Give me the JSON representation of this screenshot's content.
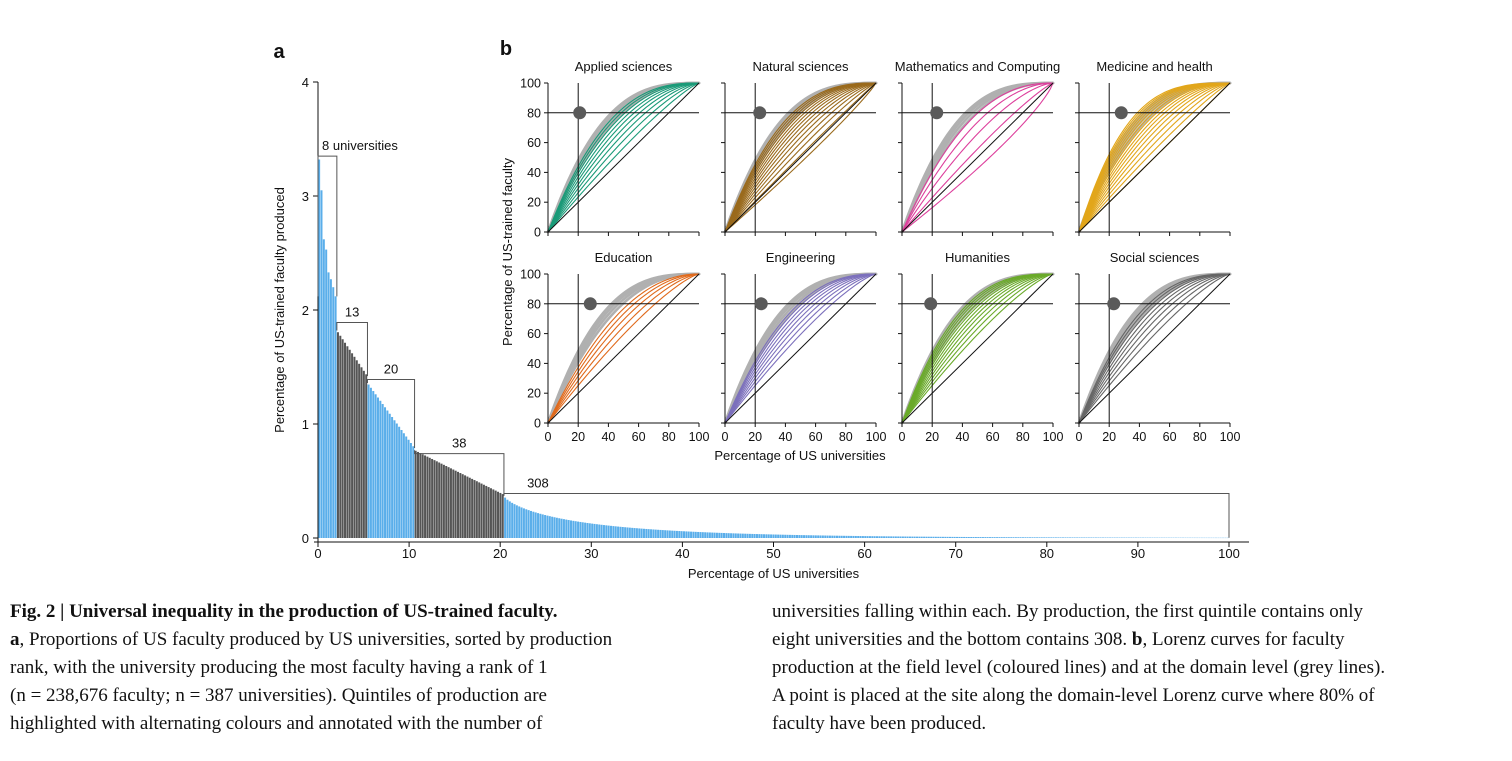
{
  "chart_data": [
    {
      "panel": "a",
      "type": "bar",
      "xlabel": "Percentage of US universities",
      "ylabel": "Percentage of US-trained faculty produced",
      "xlim": [
        0,
        100
      ],
      "ylim": [
        0,
        4
      ],
      "xticks": [
        "0",
        "10",
        "20",
        "30",
        "40",
        "50",
        "60",
        "70",
        "80",
        "90",
        "100"
      ],
      "yticks": [
        "0",
        "1",
        "2",
        "3",
        "4"
      ],
      "n_universities": 387,
      "colors": {
        "light": "#5aaeea",
        "dark": "#555555"
      },
      "leading_values": [
        3.32,
        3.05,
        2.62,
        2.53,
        2.33,
        2.27,
        2.2,
        2.12
      ],
      "quintiles": [
        {
          "label": "8 universities",
          "count": 8,
          "x_start": 0,
          "x_end": 2.07,
          "y_start": 2.12,
          "y_end": 2.12,
          "bracket_y": 3.35
        },
        {
          "label": "13",
          "count": 13,
          "x_start": 2.07,
          "x_end": 5.43,
          "y_start": 1.82,
          "y_end": 1.42,
          "bracket_y": 1.89
        },
        {
          "label": "20",
          "count": 20,
          "x_start": 5.43,
          "x_end": 10.6,
          "y_start": 1.36,
          "y_end": 0.79,
          "bracket_y": 1.39
        },
        {
          "label": "38",
          "count": 38,
          "x_start": 10.6,
          "x_end": 20.41,
          "y_start": 0.77,
          "y_end": 0.38,
          "bracket_y": 0.74
        },
        {
          "label": "308",
          "count": 308,
          "x_start": 20.41,
          "x_end": 100,
          "y_start": 0.37,
          "y_end": 0.002,
          "bracket_y": 0.39
        }
      ]
    },
    {
      "panel": "b",
      "type": "line",
      "xlabel": "Percentage of US universities",
      "ylabel": "Percentage of US-trained faculty",
      "xlim": [
        0,
        100
      ],
      "ylim": [
        0,
        100
      ],
      "ticks": [
        "0",
        "20",
        "40",
        "60",
        "80",
        "100"
      ],
      "domain_line_color": "#b0b0b0",
      "point_color": "#5a5a5a",
      "panels": [
        {
          "title": "Applied sciences",
          "color": "#1a9a78",
          "point_x": 21,
          "field_lines": 9,
          "curvature_range": [
            1.2,
            2.6
          ]
        },
        {
          "title": "Natural sciences",
          "color": "#9a6a1c",
          "point_x": 23,
          "field_lines": 14,
          "curvature_range": [
            0.9,
            2.7
          ]
        },
        {
          "title": "Mathematics and Computing",
          "color": "#dd3f9c",
          "point_x": 23,
          "field_lines": 5,
          "curvature_range": [
            0.8,
            2.3
          ]
        },
        {
          "title": "Medicine and health",
          "color": "#e2a61a",
          "point_x": 28,
          "field_lines": 16,
          "curvature_range": [
            1.0,
            3.3
          ]
        },
        {
          "title": "Education",
          "color": "#e06a1c",
          "point_x": 28,
          "field_lines": 5,
          "curvature_range": [
            1.3,
            2.1
          ]
        },
        {
          "title": "Engineering",
          "color": "#7c70bc",
          "point_x": 24,
          "field_lines": 8,
          "curvature_range": [
            1.3,
            2.4
          ]
        },
        {
          "title": "Humanities",
          "color": "#6aaa2a",
          "point_x": 19,
          "field_lines": 11,
          "curvature_range": [
            1.3,
            2.8
          ]
        },
        {
          "title": "Social sciences",
          "color": "#666666",
          "point_x": 23,
          "field_lines": 8,
          "curvature_range": [
            1.3,
            2.6
          ]
        }
      ]
    }
  ],
  "panel_labels": {
    "a": "a",
    "b": "b"
  },
  "caption": {
    "title": "Fig. 2 | Universal inequality in the production of US-trained faculty.",
    "left_lines": [
      {
        "bold": "a",
        "text": ", Proportions of US faculty produced by US universities, sorted by production"
      },
      {
        "bold": "",
        "text": "rank, with the university producing the most faculty having a rank of 1"
      },
      {
        "bold": "",
        "text": "(n = 238,676 faculty; n = 387 universities). Quintiles of production are"
      },
      {
        "bold": "",
        "text": "highlighted with alternating colours and annotated with the number of"
      }
    ],
    "right_lines": [
      {
        "text": "universities falling within each. By production, the first quintile contains only"
      },
      {
        "text": "eight universities and the bottom contains 308. ",
        "bold": "b",
        "text2": ", Lorenz curves for faculty"
      },
      {
        "text": "production at the field level (coloured lines) and at the domain level (grey lines)."
      },
      {
        "text": "A point is placed at the site along the domain-level Lorenz curve where 80% of"
      },
      {
        "text": "faculty have been produced."
      }
    ]
  }
}
